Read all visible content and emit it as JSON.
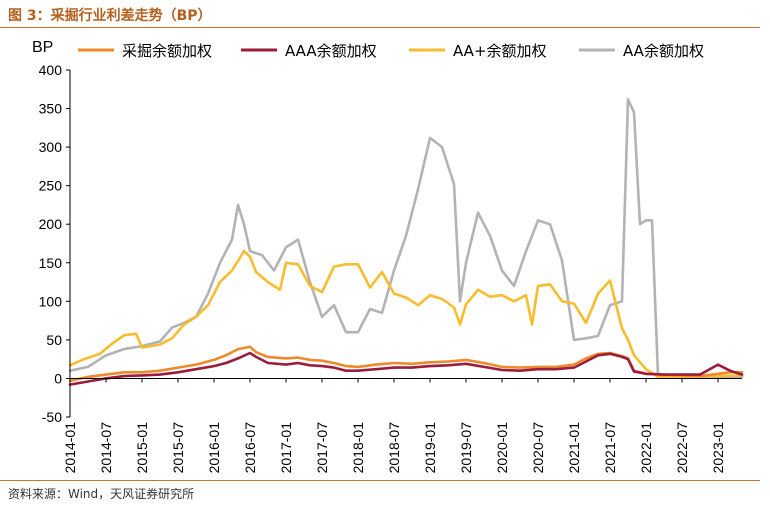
{
  "header": {
    "title": "图 3：采掘行业利差走势（BP）"
  },
  "footer": {
    "source": "资料来源：Wind，天风证券研究所"
  },
  "chart_data": {
    "type": "line",
    "ylabel": "BP",
    "ylim": [
      -50,
      400
    ],
    "yticks": [
      -50,
      0,
      50,
      100,
      150,
      200,
      250,
      300,
      350,
      400
    ],
    "xlim": [
      "2014-01",
      "2023-05"
    ],
    "xticks": [
      "2014-01",
      "2014-07",
      "2015-01",
      "2015-07",
      "2016-01",
      "2016-07",
      "2017-01",
      "2017-07",
      "2018-01",
      "2018-07",
      "2019-01",
      "2019-07",
      "2020-01",
      "2020-07",
      "2021-01",
      "2021-07",
      "2022-01",
      "2022-07",
      "2023-01"
    ],
    "grid": false,
    "legend_position": "top",
    "series": [
      {
        "name": "采掘余额加权",
        "color": "#ee8a2c",
        "points": [
          [
            "2014-01",
            -3
          ],
          [
            "2014-04",
            2
          ],
          [
            "2014-07",
            5
          ],
          [
            "2014-10",
            8
          ],
          [
            "2015-01",
            8
          ],
          [
            "2015-04",
            10
          ],
          [
            "2015-07",
            14
          ],
          [
            "2015-10",
            18
          ],
          [
            "2016-01",
            24
          ],
          [
            "2016-03",
            30
          ],
          [
            "2016-05",
            38
          ],
          [
            "2016-07",
            41
          ],
          [
            "2016-08",
            34
          ],
          [
            "2016-10",
            28
          ],
          [
            "2017-01",
            26
          ],
          [
            "2017-03",
            27
          ],
          [
            "2017-05",
            24
          ],
          [
            "2017-07",
            23
          ],
          [
            "2017-09",
            20
          ],
          [
            "2017-11",
            16
          ],
          [
            "2018-01",
            15
          ],
          [
            "2018-04",
            18
          ],
          [
            "2018-07",
            20
          ],
          [
            "2018-10",
            19
          ],
          [
            "2019-01",
            21
          ],
          [
            "2019-04",
            22
          ],
          [
            "2019-07",
            24
          ],
          [
            "2019-10",
            20
          ],
          [
            "2020-01",
            15
          ],
          [
            "2020-04",
            14
          ],
          [
            "2020-07",
            15
          ],
          [
            "2020-10",
            15
          ],
          [
            "2021-01",
            18
          ],
          [
            "2021-03",
            26
          ],
          [
            "2021-05",
            32
          ],
          [
            "2021-07",
            33
          ],
          [
            "2021-09",
            29
          ],
          [
            "2021-10",
            26
          ],
          [
            "2021-11",
            10
          ],
          [
            "2022-01",
            6
          ],
          [
            "2022-04",
            5
          ],
          [
            "2022-07",
            4
          ],
          [
            "2022-10",
            3
          ],
          [
            "2023-01",
            6
          ],
          [
            "2023-03",
            8
          ],
          [
            "2023-05",
            8
          ]
        ]
      },
      {
        "name": "AAA余额加权",
        "color": "#9b1c3c",
        "points": [
          [
            "2014-01",
            -8
          ],
          [
            "2014-04",
            -4
          ],
          [
            "2014-07",
            0
          ],
          [
            "2014-10",
            3
          ],
          [
            "2015-01",
            4
          ],
          [
            "2015-04",
            5
          ],
          [
            "2015-07",
            8
          ],
          [
            "2015-10",
            12
          ],
          [
            "2016-01",
            16
          ],
          [
            "2016-03",
            20
          ],
          [
            "2016-05",
            26
          ],
          [
            "2016-07",
            33
          ],
          [
            "2016-08",
            28
          ],
          [
            "2016-10",
            20
          ],
          [
            "2017-01",
            18
          ],
          [
            "2017-03",
            20
          ],
          [
            "2017-05",
            17
          ],
          [
            "2017-07",
            16
          ],
          [
            "2017-09",
            14
          ],
          [
            "2017-11",
            10
          ],
          [
            "2018-01",
            10
          ],
          [
            "2018-04",
            12
          ],
          [
            "2018-07",
            14
          ],
          [
            "2018-10",
            14
          ],
          [
            "2019-01",
            16
          ],
          [
            "2019-04",
            17
          ],
          [
            "2019-07",
            19
          ],
          [
            "2019-10",
            15
          ],
          [
            "2020-01",
            11
          ],
          [
            "2020-04",
            10
          ],
          [
            "2020-07",
            12
          ],
          [
            "2020-10",
            12
          ],
          [
            "2021-01",
            14
          ],
          [
            "2021-03",
            22
          ],
          [
            "2021-05",
            30
          ],
          [
            "2021-07",
            32
          ],
          [
            "2021-09",
            28
          ],
          [
            "2021-10",
            25
          ],
          [
            "2021-11",
            9
          ],
          [
            "2022-01",
            6
          ],
          [
            "2022-04",
            5
          ],
          [
            "2022-07",
            5
          ],
          [
            "2022-10",
            5
          ],
          [
            "2023-01",
            18
          ],
          [
            "2023-03",
            10
          ],
          [
            "2023-05",
            5
          ]
        ]
      },
      {
        "name": "AA+余额加权",
        "color": "#f7bd2f",
        "points": [
          [
            "2014-01",
            17
          ],
          [
            "2014-03",
            24
          ],
          [
            "2014-06",
            32
          ],
          [
            "2014-08",
            45
          ],
          [
            "2014-10",
            56
          ],
          [
            "2014-12",
            58
          ],
          [
            "2015-01",
            40
          ],
          [
            "2015-04",
            44
          ],
          [
            "2015-06",
            52
          ],
          [
            "2015-08",
            70
          ],
          [
            "2015-10",
            80
          ],
          [
            "2015-12",
            95
          ],
          [
            "2016-02",
            125
          ],
          [
            "2016-04",
            140
          ],
          [
            "2016-06",
            165
          ],
          [
            "2016-07",
            158
          ],
          [
            "2016-08",
            138
          ],
          [
            "2016-10",
            125
          ],
          [
            "2016-12",
            115
          ],
          [
            "2017-01",
            150
          ],
          [
            "2017-03",
            148
          ],
          [
            "2017-05",
            120
          ],
          [
            "2017-07",
            112
          ],
          [
            "2017-09",
            145
          ],
          [
            "2017-11",
            148
          ],
          [
            "2018-01",
            148
          ],
          [
            "2018-03",
            118
          ],
          [
            "2018-05",
            138
          ],
          [
            "2018-07",
            110
          ],
          [
            "2018-09",
            105
          ],
          [
            "2018-11",
            95
          ],
          [
            "2019-01",
            108
          ],
          [
            "2019-03",
            103
          ],
          [
            "2019-05",
            92
          ],
          [
            "2019-06",
            70
          ],
          [
            "2019-07",
            96
          ],
          [
            "2019-09",
            115
          ],
          [
            "2019-11",
            106
          ],
          [
            "2020-01",
            108
          ],
          [
            "2020-03",
            100
          ],
          [
            "2020-05",
            108
          ],
          [
            "2020-06",
            70
          ],
          [
            "2020-07",
            120
          ],
          [
            "2020-09",
            122
          ],
          [
            "2020-11",
            100
          ],
          [
            "2021-01",
            97
          ],
          [
            "2021-03",
            72
          ],
          [
            "2021-05",
            110
          ],
          [
            "2021-07",
            127
          ],
          [
            "2021-09",
            65
          ],
          [
            "2021-10",
            50
          ],
          [
            "2021-11",
            30
          ],
          [
            "2022-01",
            12
          ],
          [
            "2022-03",
            2
          ],
          [
            "2022-07",
            2
          ],
          [
            "2023-01",
            3
          ],
          [
            "2023-05",
            4
          ]
        ]
      },
      {
        "name": "AA余额加权",
        "color": "#b3b3b3",
        "points": [
          [
            "2014-01",
            10
          ],
          [
            "2014-04",
            15
          ],
          [
            "2014-07",
            30
          ],
          [
            "2014-10",
            38
          ],
          [
            "2015-01",
            42
          ],
          [
            "2015-04",
            48
          ],
          [
            "2015-06",
            66
          ],
          [
            "2015-08",
            72
          ],
          [
            "2015-10",
            80
          ],
          [
            "2015-12",
            110
          ],
          [
            "2016-02",
            150
          ],
          [
            "2016-04",
            180
          ],
          [
            "2016-05",
            225
          ],
          [
            "2016-06",
            200
          ],
          [
            "2016-07",
            165
          ],
          [
            "2016-09",
            160
          ],
          [
            "2016-11",
            140
          ],
          [
            "2017-01",
            170
          ],
          [
            "2017-03",
            180
          ],
          [
            "2017-05",
            125
          ],
          [
            "2017-07",
            80
          ],
          [
            "2017-09",
            95
          ],
          [
            "2017-11",
            60
          ],
          [
            "2018-01",
            60
          ],
          [
            "2018-03",
            90
          ],
          [
            "2018-05",
            85
          ],
          [
            "2018-07",
            140
          ],
          [
            "2018-09",
            185
          ],
          [
            "2018-11",
            245
          ],
          [
            "2019-01",
            312
          ],
          [
            "2019-03",
            300
          ],
          [
            "2019-05",
            252
          ],
          [
            "2019-06",
            100
          ],
          [
            "2019-07",
            150
          ],
          [
            "2019-09",
            215
          ],
          [
            "2019-11",
            185
          ],
          [
            "2020-01",
            140
          ],
          [
            "2020-03",
            120
          ],
          [
            "2020-05",
            165
          ],
          [
            "2020-07",
            205
          ],
          [
            "2020-09",
            200
          ],
          [
            "2020-11",
            153
          ],
          [
            "2021-01",
            50
          ],
          [
            "2021-03",
            52
          ],
          [
            "2021-05",
            55
          ],
          [
            "2021-07",
            95
          ],
          [
            "2021-09",
            100
          ],
          [
            "2021-10",
            362
          ],
          [
            "2021-11",
            345
          ],
          [
            "2021-12",
            200
          ],
          [
            "2022-01",
            205
          ],
          [
            "2022-02",
            205
          ],
          [
            "2022-03",
            3
          ],
          [
            "2022-07",
            2
          ],
          [
            "2023-01",
            2
          ],
          [
            "2023-05",
            2
          ]
        ]
      }
    ]
  }
}
